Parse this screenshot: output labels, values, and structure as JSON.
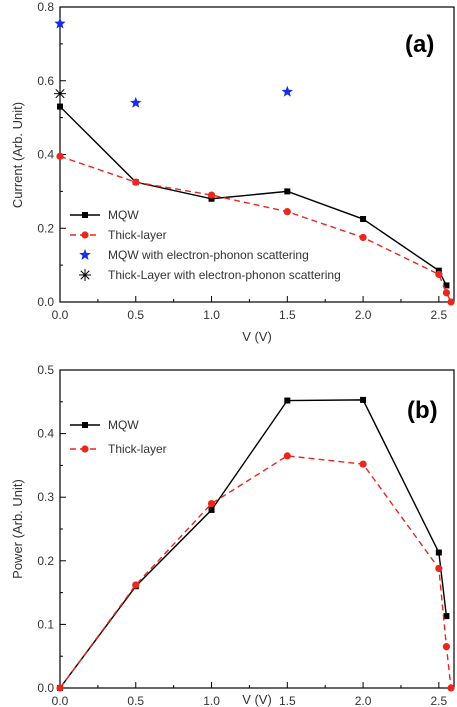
{
  "chart_data": [
    {
      "type": "line",
      "panel_label": "(a)",
      "xlabel": "V (V)",
      "ylabel": "Current (Arb. Unit)",
      "xlim": [
        0,
        2.6
      ],
      "ylim": [
        0,
        0.8
      ],
      "xticks": [
        "0.0",
        "0.5",
        "1.0",
        "1.5",
        "2.0",
        "2.5"
      ],
      "yticks": [
        "0.0",
        "0.2",
        "0.4",
        "0.6",
        "0.8"
      ],
      "legend_position": "bottom-left",
      "series": [
        {
          "name": "MQW",
          "style": "solid-square",
          "color": "#000000",
          "x": [
            0.0,
            0.5,
            1.0,
            1.5,
            2.0,
            2.5,
            2.55
          ],
          "y": [
            0.53,
            0.325,
            0.28,
            0.3,
            0.225,
            0.085,
            0.045
          ]
        },
        {
          "name": "Thick-layer",
          "style": "dashed-circle",
          "color": "#e8281e",
          "x": [
            0.0,
            0.5,
            1.0,
            1.5,
            2.0,
            2.5,
            2.55,
            2.58
          ],
          "y": [
            0.395,
            0.325,
            0.29,
            0.245,
            0.175,
            0.075,
            0.025,
            0.0
          ]
        },
        {
          "name": "MQW with electron-phonon scattering",
          "style": "star",
          "color": "#1a2ee6",
          "x": [
            0.0,
            0.5,
            1.5
          ],
          "y": [
            0.755,
            0.54,
            0.57
          ]
        },
        {
          "name": "Thick-Layer with electron-phonon scattering",
          "style": "asterisk",
          "color": "#000000",
          "x": [
            0.0
          ],
          "y": [
            0.565
          ]
        }
      ]
    },
    {
      "type": "line",
      "panel_label": "(b)",
      "xlabel": "V (V)",
      "ylabel": "Power (Arb. Unit)",
      "xlim": [
        0,
        2.6
      ],
      "ylim": [
        0,
        0.5
      ],
      "xticks": [
        "0.0",
        "0.5",
        "1.0",
        "1.5",
        "2.0",
        "2.5"
      ],
      "yticks": [
        "0.0",
        "0.1",
        "0.2",
        "0.3",
        "0.4",
        "0.5"
      ],
      "legend_position": "top-left",
      "series": [
        {
          "name": "MQW",
          "style": "solid-square",
          "color": "#000000",
          "x": [
            0.0,
            0.5,
            1.0,
            1.5,
            2.0,
            2.5,
            2.55
          ],
          "y": [
            0.0,
            0.16,
            0.28,
            0.452,
            0.453,
            0.213,
            0.113
          ]
        },
        {
          "name": "Thick-layer",
          "style": "dashed-circle",
          "color": "#e8281e",
          "x": [
            0.0,
            0.5,
            1.0,
            1.5,
            2.0,
            2.5,
            2.55,
            2.58
          ],
          "y": [
            0.0,
            0.162,
            0.29,
            0.365,
            0.352,
            0.188,
            0.065,
            0.0
          ]
        }
      ]
    }
  ]
}
